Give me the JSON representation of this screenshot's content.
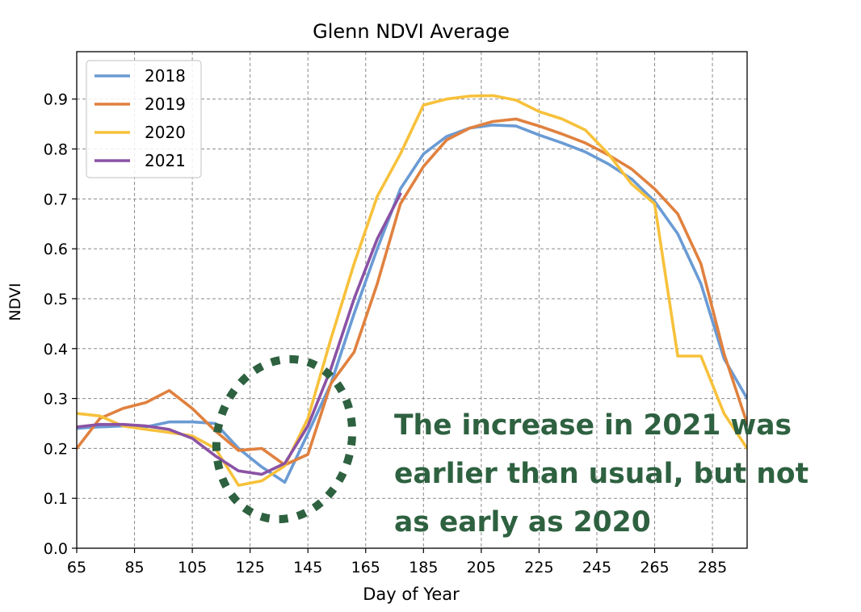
{
  "chart_data": {
    "type": "line",
    "title": "Glenn NDVI Average",
    "xlabel": "Day of Year",
    "ylabel": "NDVI",
    "xlim": [
      65,
      297
    ],
    "ylim": [
      0,
      0.995
    ],
    "xticks": [
      65,
      85,
      105,
      125,
      145,
      165,
      185,
      205,
      225,
      245,
      265,
      285
    ],
    "yticks": [
      0.0,
      0.1,
      0.2,
      0.3,
      0.4,
      0.5,
      0.6,
      0.7,
      0.8,
      0.9
    ],
    "grid": true,
    "legend": "top-left",
    "series": [
      {
        "name": "2018",
        "color": "#6a9bd4",
        "x": [
          65,
          69,
          81,
          89,
          97,
          105,
          113,
          121,
          129,
          137,
          145,
          153,
          161,
          169,
          177,
          185,
          193,
          201,
          209,
          217,
          225,
          233,
          241,
          249,
          257,
          265,
          273,
          281,
          289,
          297
        ],
        "y": [
          0.24,
          0.242,
          0.245,
          0.243,
          0.253,
          0.253,
          0.25,
          0.2,
          0.163,
          0.132,
          0.23,
          0.33,
          0.47,
          0.6,
          0.72,
          0.79,
          0.825,
          0.842,
          0.848,
          0.846,
          0.828,
          0.812,
          0.794,
          0.77,
          0.74,
          0.695,
          0.63,
          0.53,
          0.38,
          0.3
        ]
      },
      {
        "name": "2019",
        "color": "#e0813f",
        "x": [
          65,
          73,
          81,
          89,
          97,
          105,
          113,
          121,
          129,
          137,
          145,
          153,
          161,
          169,
          177,
          185,
          193,
          201,
          209,
          217,
          225,
          233,
          241,
          249,
          257,
          265,
          273,
          281,
          289,
          297
        ],
        "y": [
          0.2,
          0.26,
          0.28,
          0.292,
          0.316,
          0.28,
          0.235,
          0.196,
          0.2,
          0.167,
          0.188,
          0.33,
          0.393,
          0.53,
          0.69,
          0.765,
          0.818,
          0.842,
          0.855,
          0.86,
          0.846,
          0.83,
          0.812,
          0.788,
          0.76,
          0.72,
          0.67,
          0.57,
          0.39,
          0.25
        ]
      },
      {
        "name": "2020",
        "color": "#f7c13b",
        "x": [
          65,
          73,
          81,
          89,
          97,
          105,
          113,
          121,
          129,
          137,
          145,
          153,
          161,
          169,
          177,
          185,
          193,
          201,
          209,
          217,
          225,
          233,
          241,
          249,
          257,
          265,
          273,
          281,
          289,
          297
        ],
        "y": [
          0.27,
          0.265,
          0.245,
          0.238,
          0.232,
          0.225,
          0.2,
          0.126,
          0.135,
          0.165,
          0.26,
          0.42,
          0.57,
          0.705,
          0.79,
          0.888,
          0.9,
          0.906,
          0.907,
          0.898,
          0.875,
          0.86,
          0.838,
          0.79,
          0.73,
          0.69,
          0.385,
          0.385,
          0.27,
          0.2
        ]
      },
      {
        "name": "2021",
        "color": "#8a52a4",
        "x": [
          65,
          73,
          81,
          89,
          97,
          105,
          113,
          121,
          129,
          137,
          145,
          153,
          161,
          169,
          177
        ],
        "y": [
          0.243,
          0.248,
          0.248,
          0.245,
          0.238,
          0.22,
          0.185,
          0.155,
          0.148,
          0.17,
          0.245,
          0.36,
          0.5,
          0.62,
          0.71
        ]
      }
    ],
    "annotation": [
      "The increase in 2021 was",
      "earlier than usual, but not",
      "as early as 2020"
    ],
    "annotation_color": "#2e6140"
  }
}
